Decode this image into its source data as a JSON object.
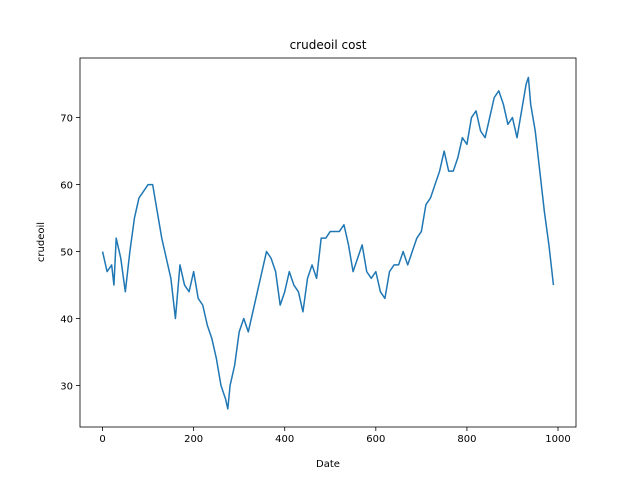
{
  "chart_data": {
    "type": "line",
    "title": "crudeoil cost",
    "x_label": "Date",
    "y_label": "crudeoil",
    "x": [
      0,
      10,
      20,
      25,
      30,
      40,
      50,
      60,
      70,
      80,
      90,
      100,
      110,
      120,
      130,
      140,
      150,
      160,
      170,
      180,
      190,
      200,
      210,
      220,
      230,
      240,
      250,
      260,
      270,
      275,
      280,
      290,
      300,
      310,
      320,
      330,
      340,
      350,
      360,
      370,
      380,
      390,
      400,
      410,
      420,
      430,
      440,
      450,
      460,
      470,
      480,
      490,
      500,
      510,
      520,
      530,
      540,
      550,
      560,
      570,
      580,
      590,
      600,
      610,
      620,
      630,
      640,
      650,
      660,
      670,
      680,
      690,
      700,
      710,
      720,
      730,
      740,
      750,
      760,
      770,
      780,
      790,
      800,
      810,
      820,
      830,
      840,
      850,
      860,
      870,
      880,
      890,
      900,
      910,
      920,
      930,
      935,
      940,
      950,
      960,
      970,
      980,
      985,
      990
    ],
    "series": [
      {
        "name": "crudeoil",
        "color": "#1f77b4",
        "values": [
          50,
          47,
          48,
          45,
          52,
          49,
          44,
          50,
          55,
          58,
          59,
          60,
          60,
          56,
          52,
          49,
          46,
          40,
          48,
          45,
          44,
          47,
          43,
          42,
          39,
          37,
          34,
          30,
          28,
          26.5,
          30,
          33,
          38,
          40,
          38,
          41,
          44,
          47,
          50,
          49,
          47,
          42,
          44,
          47,
          45,
          44,
          41,
          46,
          48,
          46,
          52,
          52,
          53,
          53,
          53,
          54,
          51,
          47,
          49,
          51,
          47,
          46,
          47,
          44,
          43,
          47,
          48,
          48,
          50,
          48,
          50,
          52,
          53,
          57,
          58,
          60,
          62,
          65,
          62,
          62,
          64,
          67,
          66,
          70,
          71,
          68,
          67,
          70,
          73,
          74,
          72,
          69,
          70,
          67,
          71,
          75,
          76,
          72,
          68,
          62,
          56,
          51,
          48,
          45
        ]
      }
    ],
    "xlim": [
      -49.5,
      1039.5
    ],
    "ylim": [
      23.8,
      78.9
    ],
    "xticks": [
      0,
      200,
      400,
      600,
      800,
      1000
    ],
    "yticks": [
      30,
      40,
      50,
      60,
      70
    ]
  }
}
